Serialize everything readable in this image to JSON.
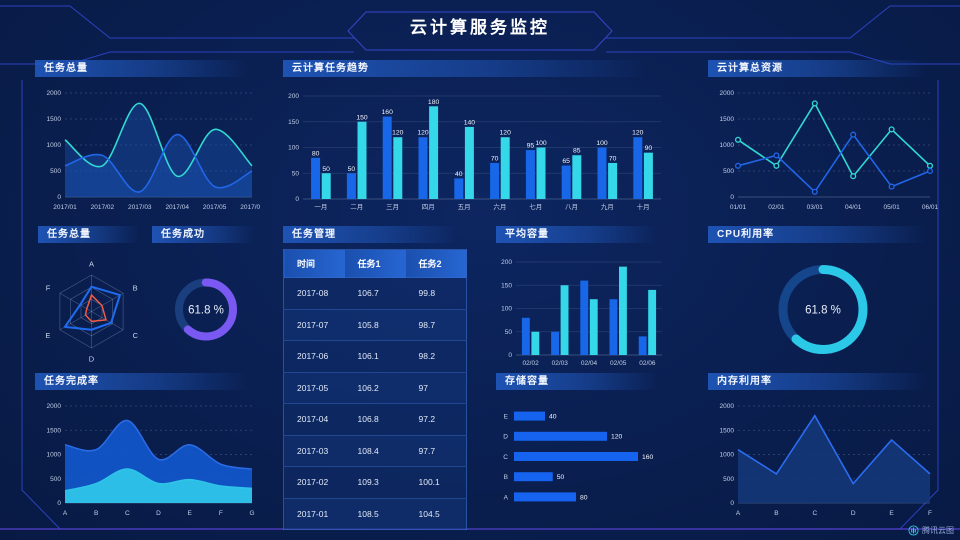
{
  "header": {
    "title": "云计算服务监控"
  },
  "watermark": {
    "text": "腾讯云图"
  },
  "colors": {
    "background": "#0a1f50",
    "accent_blue": "#1767e8",
    "accent_cyan": "#35d8e8",
    "accent_teal": "#32d8d2",
    "accent_purple": "#7a58f2",
    "frame_line": "#2e46cc",
    "frame_bottom": "#5340d0"
  },
  "chart_data": [
    {
      "id": "task-total-trend",
      "type": "area",
      "title": "任务总量",
      "smooth": true,
      "x": [
        "2017/01",
        "2017/02",
        "2017/03",
        "2017/04",
        "2017/05",
        "2017/06"
      ],
      "series": [
        {
          "name": "series-teal",
          "color": "#32d8d2",
          "fill": "#1a53b4",
          "fillop": 0.38,
          "values": [
            1100,
            600,
            1800,
            400,
            1300,
            600
          ]
        },
        {
          "name": "series-blue",
          "color": "#2166e8",
          "fill": "#1a53b4",
          "fillop": 0.45,
          "values": [
            600,
            800,
            100,
            1200,
            200,
            500
          ]
        }
      ],
      "ylim": [
        0,
        2000
      ],
      "yticks": [
        0,
        500,
        1000,
        1500,
        2000
      ],
      "grid": "dashed",
      "legend": "none"
    },
    {
      "id": "cloud-task-trend",
      "type": "bar",
      "title": "云计算任务趋势",
      "bar_labels": true,
      "categories": [
        "一月",
        "二月",
        "三月",
        "四月",
        "五月",
        "六月",
        "七月",
        "八月",
        "九月",
        "十月"
      ],
      "series": [
        {
          "name": "series-blue",
          "color": "#1767e8",
          "values": [
            80,
            50,
            160,
            120,
            40,
            70,
            95,
            65,
            100,
            120
          ]
        },
        {
          "name": "series-cyan",
          "color": "#35d8e8",
          "values": [
            50,
            150,
            120,
            180,
            140,
            120,
            100,
            85,
            70,
            90
          ]
        }
      ],
      "ylim": [
        0,
        200
      ],
      "yticks": [
        0,
        50,
        100,
        150,
        200
      ],
      "grid": "solid",
      "legend": "none"
    },
    {
      "id": "cloud-total-resource",
      "type": "line",
      "title": "云计算总资源",
      "markers": true,
      "x": [
        "01/01",
        "02/01",
        "03/01",
        "04/01",
        "05/01",
        "06/01"
      ],
      "series": [
        {
          "name": "series-teal",
          "color": "#32d8d2",
          "values": [
            1100,
            600,
            1800,
            400,
            1300,
            600
          ]
        },
        {
          "name": "series-blue",
          "color": "#2166e8",
          "values": [
            600,
            800,
            100,
            1200,
            200,
            500
          ]
        }
      ],
      "ylim": [
        0,
        2000
      ],
      "yticks": [
        0,
        500,
        1000,
        1500,
        2000
      ],
      "grid": "dashed",
      "legend": "none"
    },
    {
      "id": "task-total-radar",
      "type": "radar",
      "title": "任务总量",
      "axes": [
        "A",
        "B",
        "C",
        "D",
        "E",
        "F"
      ],
      "max": 100,
      "series": [
        {
          "name": "series-blue",
          "color": "#1f6cf0",
          "values": [
            68,
            90,
            62,
            50,
            84,
            36
          ]
        },
        {
          "name": "series-red",
          "color": "#f25b43",
          "values": [
            45,
            33,
            46,
            27,
            19,
            15
          ]
        }
      ]
    },
    {
      "id": "task-success-donut",
      "type": "donut",
      "title": "任务成功",
      "value": 61.8,
      "label": "61.8 %",
      "color": "#7a58f2",
      "track": "#1b3f7e"
    },
    {
      "id": "task-management-table",
      "type": "table",
      "title": "任务管理",
      "columns": [
        "时间",
        "任务1",
        "任务2"
      ],
      "rows": [
        [
          "2017-08",
          "106.7",
          "99.8"
        ],
        [
          "2017-07",
          "105.8",
          "98.7"
        ],
        [
          "2017-06",
          "106.1",
          "98.2"
        ],
        [
          "2017-05",
          "106.2",
          "97"
        ],
        [
          "2017-04",
          "106.8",
          "97.2"
        ],
        [
          "2017-03",
          "108.4",
          "97.7"
        ],
        [
          "2017-02",
          "109.3",
          "100.1"
        ],
        [
          "2017-01",
          "108.5",
          "104.5"
        ]
      ]
    },
    {
      "id": "average-capacity",
      "type": "bar",
      "title": "平均容量",
      "bar_labels": false,
      "categories": [
        "02/02",
        "02/03",
        "02/04",
        "02/05",
        "02/06"
      ],
      "series": [
        {
          "name": "series-blue",
          "color": "#1767e8",
          "values": [
            80,
            50,
            160,
            120,
            40
          ]
        },
        {
          "name": "series-cyan",
          "color": "#35d8e8",
          "values": [
            50,
            150,
            120,
            190,
            140
          ]
        }
      ],
      "ylim": [
        0,
        200
      ],
      "yticks": [
        0,
        50,
        100,
        150,
        200
      ],
      "grid": "solid",
      "legend": "none"
    },
    {
      "id": "cpu-utilization-donut",
      "type": "donut",
      "title": "CPU利用率",
      "value": 61.8,
      "label": "61.8 %",
      "color": "#2bc8e8",
      "track": "#15468c"
    },
    {
      "id": "task-completion-rate",
      "type": "area",
      "title": "任务完成率",
      "smooth": true,
      "x": [
        "A",
        "B",
        "C",
        "D",
        "E",
        "F",
        "G"
      ],
      "series": [
        {
          "name": "series-blue",
          "color": "#2a6ae4",
          "fill": "#1257cc",
          "fillop": 0.92,
          "values": [
            1200,
            1100,
            1700,
            900,
            1200,
            800,
            700
          ]
        },
        {
          "name": "series-cyan",
          "color": "#2ec4e8",
          "fill": "#2ec4e8",
          "fillop": 0.95,
          "values": [
            250,
            400,
            700,
            400,
            480,
            350,
            300
          ]
        }
      ],
      "ylim": [
        0,
        2000
      ],
      "yticks": [
        0,
        500,
        1000,
        1500,
        2000
      ],
      "grid": "dashed",
      "legend": "none"
    },
    {
      "id": "storage-capacity",
      "type": "hbar",
      "title": "存储容量",
      "color": "#1563ee",
      "categories": [
        "E",
        "D",
        "C",
        "B",
        "A"
      ],
      "values": [
        40,
        120,
        160,
        50,
        80
      ],
      "xlim": [
        0,
        160
      ]
    },
    {
      "id": "memory-utilization",
      "type": "line",
      "title": "内存利用率",
      "markers": false,
      "x": [
        "A",
        "B",
        "C",
        "D",
        "E",
        "F"
      ],
      "series": [
        {
          "name": "series-blue",
          "color": "#2b6cf0",
          "fill": "#14387a",
          "fillop": 0.85,
          "values": [
            1100,
            600,
            1800,
            400,
            1300,
            600
          ]
        }
      ],
      "ylim": [
        0,
        2000
      ],
      "yticks": [
        0,
        500,
        1000,
        1500,
        2000
      ],
      "grid": "dashed",
      "legend": "none"
    }
  ]
}
